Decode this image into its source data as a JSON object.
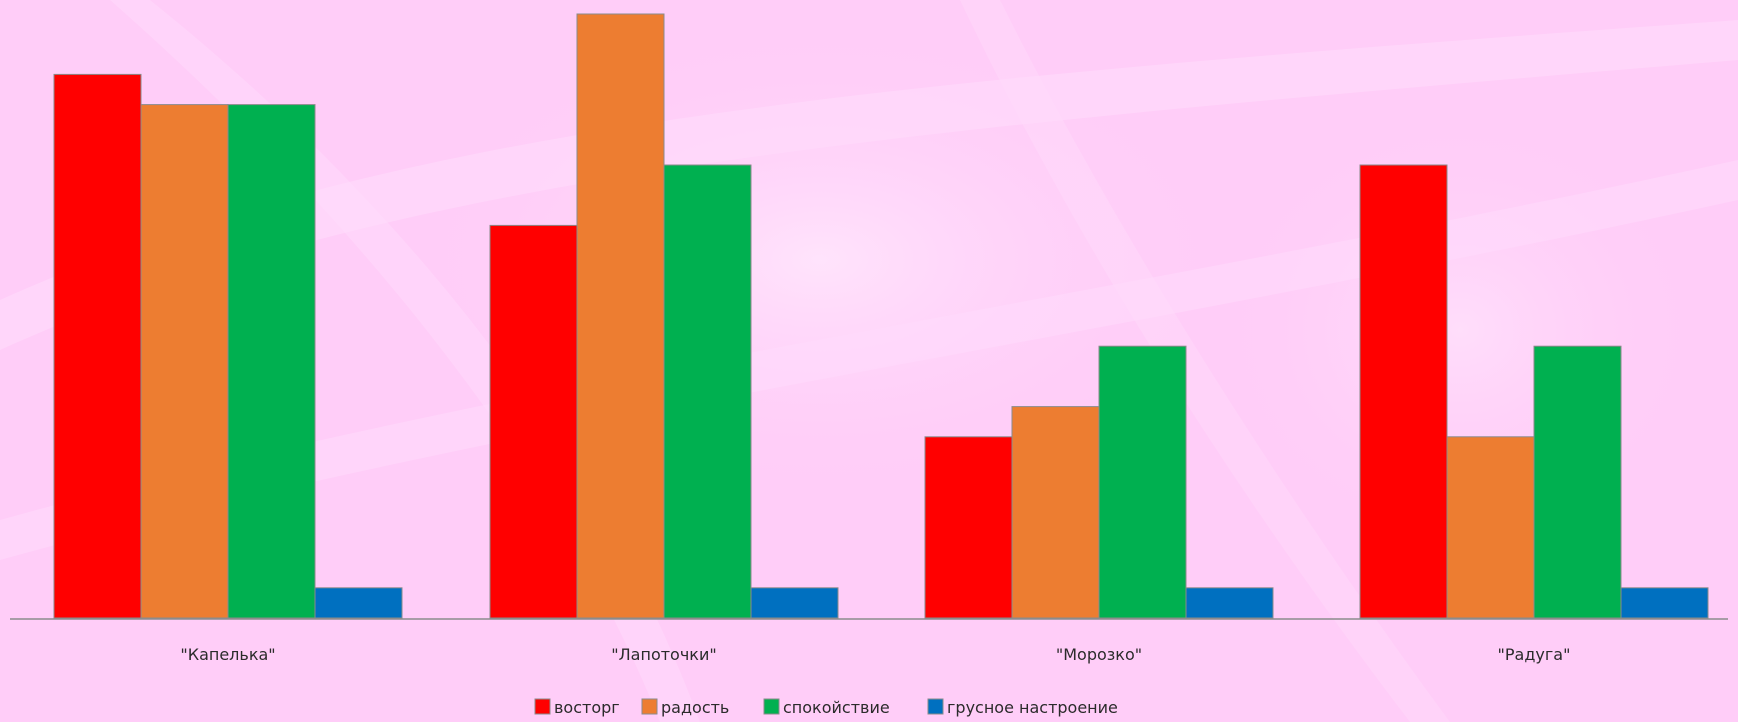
{
  "chart_data": {
    "type": "bar",
    "categories": [
      "\"Капелька\"",
      "\"Лапоточки\"",
      "\"Морозко\"",
      "\"Радуга\""
    ],
    "series": [
      {
        "name": "восторг",
        "color": "#ff0000",
        "values": [
          18,
          13,
          6,
          15
        ]
      },
      {
        "name": "радость",
        "color": "#ed7d31",
        "values": [
          17,
          20,
          7,
          6
        ]
      },
      {
        "name": "спокойствие",
        "color": "#00b050",
        "values": [
          17,
          15,
          9,
          9
        ]
      },
      {
        "name": "грусное настроение",
        "color": "#0070c0",
        "values": [
          1,
          1,
          1,
          1
        ]
      }
    ],
    "title": "",
    "xlabel": "",
    "ylabel": "",
    "ylim": [
      0,
      20
    ],
    "grid": false,
    "legend_position": "bottom"
  }
}
